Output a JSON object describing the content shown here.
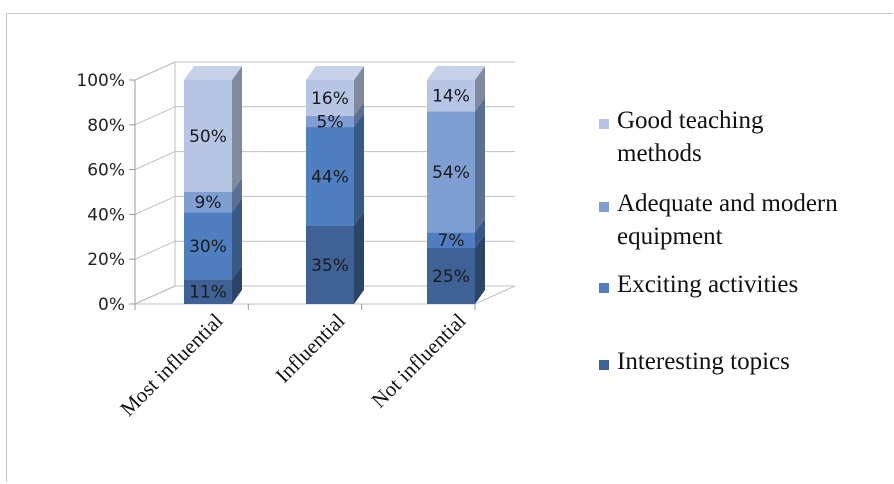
{
  "chart_data": {
    "type": "bar",
    "stacked": true,
    "three_d": true,
    "percent_stacked": true,
    "categories": [
      "Most influential",
      "Influential",
      "Not influential"
    ],
    "series": [
      {
        "name": "Interesting topics",
        "values": [
          11,
          35,
          25
        ],
        "color": "#3e6295"
      },
      {
        "name": "Exciting activities",
        "values": [
          30,
          44,
          7
        ],
        "color": "#4f7fc0"
      },
      {
        "name": "Adequate and modern equipment",
        "values": [
          9,
          5,
          54
        ],
        "color": "#7f9ed2"
      },
      {
        "name": "Good teaching methods",
        "values": [
          50,
          16,
          14
        ],
        "color": "#b6c5e3"
      }
    ],
    "ylim": [
      0,
      100
    ],
    "ytick_labels": [
      "0%",
      "20%",
      "40%",
      "60%",
      "80%",
      "100%"
    ],
    "value_format": "percent",
    "grid": true,
    "legend_position": "right",
    "legend_order": [
      "Good teaching methods",
      "Adequate and modern equipment",
      "Exciting activities",
      "Interesting topics"
    ],
    "legend_display_lines": {
      "Good teaching methods": [
        "Good teaching",
        "methods"
      ],
      "Adequate and modern equipment": [
        "Adequate and modern",
        "equipment"
      ],
      "Exciting activities": [
        "Exciting activities"
      ],
      "Interesting topics": [
        "Interesting topics"
      ]
    },
    "title": "",
    "xlabel": "",
    "ylabel": ""
  }
}
